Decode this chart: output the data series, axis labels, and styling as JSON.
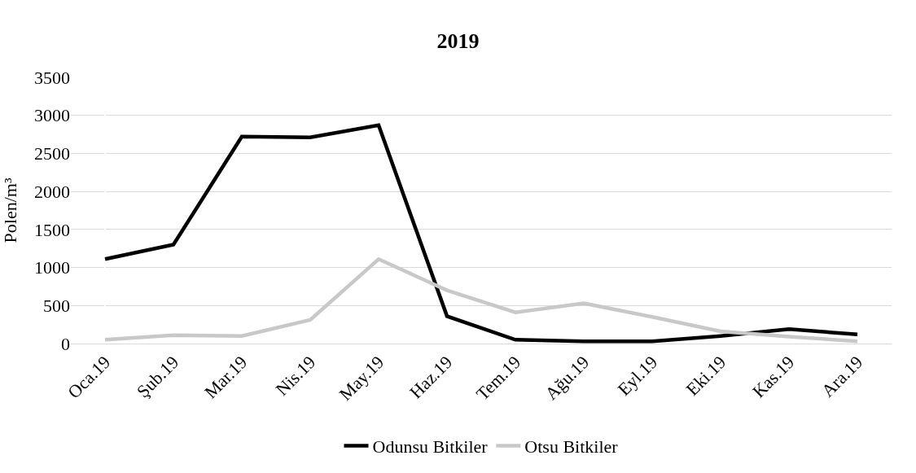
{
  "chart_data": {
    "type": "line",
    "title": "2019",
    "ylabel": "Polen/m³",
    "categories": [
      "Oca.19",
      "Şub.19",
      "Mar.19",
      "Nis.19",
      "May.19",
      "Haz.19",
      "Tem.19",
      "Ağu.19",
      "Eyl.19",
      "Eki.19",
      "Kas.19",
      "Ara.19"
    ],
    "series": [
      {
        "name": "Odunsu Bitkiler",
        "color": "#000000",
        "values": [
          1110,
          1300,
          2720,
          2710,
          2870,
          360,
          50,
          30,
          30,
          100,
          190,
          120
        ]
      },
      {
        "name": "Otsu Bitkiler",
        "color": "#c8c8c8",
        "values": [
          50,
          110,
          100,
          310,
          1110,
          700,
          410,
          530,
          350,
          160,
          90,
          30
        ]
      }
    ],
    "ylim": [
      0,
      3500
    ],
    "yticks": [
      0,
      500,
      1000,
      1500,
      2000,
      2500,
      3000,
      3500
    ],
    "grid": "y",
    "legend": "bottom",
    "marker": "none",
    "line_style": "solid"
  }
}
